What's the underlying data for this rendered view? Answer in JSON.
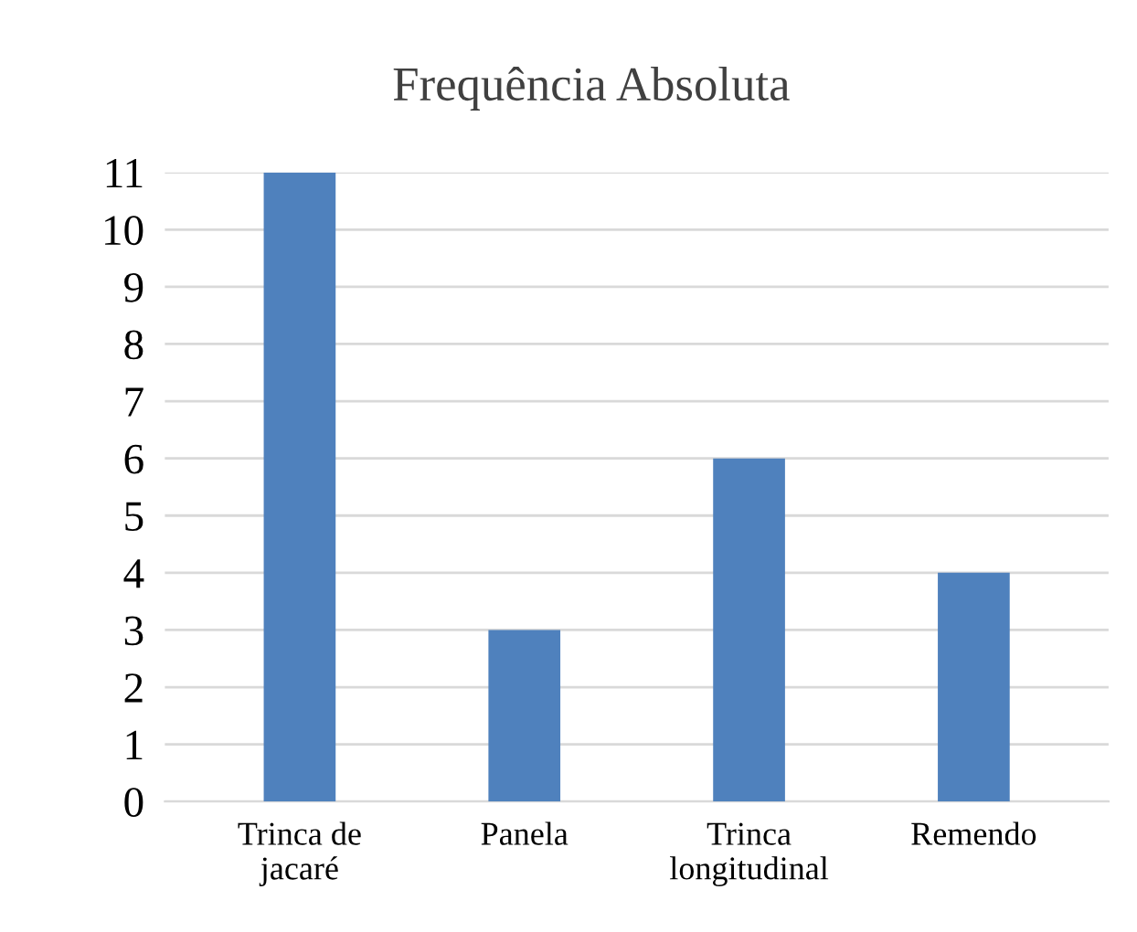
{
  "chart_data": {
    "type": "bar",
    "title": "Frequência Absoluta",
    "categories": [
      "Trinca de\njacaré",
      "Panela",
      "Trinca\nlongitudinal",
      "Remendo"
    ],
    "values": [
      11,
      3,
      6,
      4
    ],
    "color": "#4f81bd",
    "ylim": [
      0,
      11
    ],
    "yticks": [
      0,
      1,
      2,
      3,
      4,
      5,
      6,
      7,
      8,
      9,
      10,
      11
    ],
    "grid": "y"
  }
}
